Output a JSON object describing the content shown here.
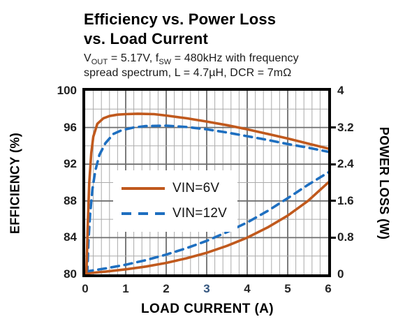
{
  "title": {
    "line1": "Efficiency vs. Power Loss",
    "line2": "vs. Load Current"
  },
  "subtitle": {
    "segments": [
      {
        "t": "V"
      },
      {
        "sub": "OUT"
      },
      {
        "t": " = 5.17V, f"
      },
      {
        "sub": "SW"
      },
      {
        "t": " = 480kHz with frequency"
      },
      {
        "br": true
      },
      {
        "t": "spread spectrum, L = 4.7µH, DCR = 7mΩ"
      }
    ]
  },
  "legend": {
    "items": [
      {
        "label": "VIN=6V",
        "style": "solid",
        "color": "#C0591D"
      },
      {
        "label": "VIN=12V",
        "style": "dashed",
        "color": "#1E6FC0"
      }
    ]
  },
  "colors": {
    "series_6v": "#C0591D",
    "series_12v": "#1E6FC0",
    "grid_minor": "#ABABAB",
    "grid_major": "#6E6E6E",
    "frame": "#000000",
    "tick_text": "#1F1F1F",
    "xtick_3_blue": "#33557E"
  },
  "chart_data": {
    "type": "line",
    "title": "Efficiency vs. Power Loss vs. Load Current",
    "xlabel": "LOAD CURRENT  (A)",
    "ylabel_left": "EFFICIENCY  (%)",
    "ylabel_right": "POWER LOSS (W)",
    "xlim": [
      0,
      6
    ],
    "ylim_left": [
      80,
      100
    ],
    "ylim_right": [
      0,
      4
    ],
    "x_major_step": 1,
    "x_minor_step": 0.2,
    "y_left_major_step": 4,
    "y_left_minor_step": 2,
    "y_right_major_step": 0.8,
    "y_right_minor_step": 0.4,
    "grid": "both",
    "legend_position": "center-left",
    "x_ticks": [
      "0",
      "1",
      "2",
      "3",
      "4",
      "5",
      "6"
    ],
    "x_tick_colors": [
      "#262626",
      "#262626",
      "#262626",
      "#33557E",
      "#262626",
      "#262626",
      "#262626"
    ],
    "y_left_ticks": [
      "100",
      "96",
      "92",
      "88",
      "84",
      "80"
    ],
    "y_right_ticks": [
      "4",
      "3.2",
      "2.4",
      "1.6",
      "0.8",
      "0"
    ],
    "series": [
      {
        "name": "Efficiency VIN=6V",
        "axis": "left",
        "style": "solid",
        "color": "#C0591D",
        "points": [
          [
            0.03,
            80
          ],
          [
            0.06,
            85
          ],
          [
            0.1,
            90
          ],
          [
            0.15,
            93.2
          ],
          [
            0.2,
            95
          ],
          [
            0.3,
            96.4
          ],
          [
            0.45,
            97
          ],
          [
            0.6,
            97.25
          ],
          [
            0.8,
            97.4
          ],
          [
            1.0,
            97.45
          ],
          [
            1.3,
            97.5
          ],
          [
            1.7,
            97.45
          ],
          [
            2.0,
            97.3
          ],
          [
            2.5,
            97.0
          ],
          [
            3.0,
            96.65
          ],
          [
            3.5,
            96.25
          ],
          [
            4.0,
            95.8
          ],
          [
            4.5,
            95.3
          ],
          [
            5.0,
            94.8
          ],
          [
            5.5,
            94.25
          ],
          [
            6.0,
            93.7
          ]
        ]
      },
      {
        "name": "Efficiency VIN=12V",
        "axis": "left",
        "style": "dashed",
        "color": "#1E6FC0",
        "points": [
          [
            0.05,
            80
          ],
          [
            0.08,
            83.5
          ],
          [
            0.12,
            86.5
          ],
          [
            0.18,
            89.3
          ],
          [
            0.25,
            91.3
          ],
          [
            0.35,
            93
          ],
          [
            0.5,
            94.3
          ],
          [
            0.7,
            95.3
          ],
          [
            0.9,
            95.7
          ],
          [
            1.2,
            96
          ],
          [
            1.5,
            96.15
          ],
          [
            2.0,
            96.2
          ],
          [
            2.5,
            96.05
          ],
          [
            3.0,
            95.8
          ],
          [
            3.5,
            95.45
          ],
          [
            4.0,
            95.05
          ],
          [
            4.5,
            94.65
          ],
          [
            5.0,
            94.2
          ],
          [
            5.5,
            93.8
          ],
          [
            6.0,
            93.35
          ]
        ]
      },
      {
        "name": "Power Loss VIN=6V",
        "axis": "right",
        "style": "solid",
        "color": "#C0591D",
        "points": [
          [
            0,
            0.02
          ],
          [
            0.5,
            0.06
          ],
          [
            1,
            0.11
          ],
          [
            1.5,
            0.17
          ],
          [
            2,
            0.25
          ],
          [
            2.5,
            0.35
          ],
          [
            3,
            0.47
          ],
          [
            3.5,
            0.62
          ],
          [
            4,
            0.8
          ],
          [
            4.5,
            1.02
          ],
          [
            5,
            1.28
          ],
          [
            5.5,
            1.6
          ],
          [
            6,
            2.0
          ]
        ]
      },
      {
        "name": "Power Loss VIN=12V",
        "axis": "right",
        "style": "dashed",
        "color": "#1E6FC0",
        "points": [
          [
            0,
            0.06
          ],
          [
            0.5,
            0.13
          ],
          [
            1,
            0.21
          ],
          [
            1.5,
            0.31
          ],
          [
            2,
            0.43
          ],
          [
            2.5,
            0.57
          ],
          [
            3,
            0.73
          ],
          [
            3.5,
            0.92
          ],
          [
            4,
            1.13
          ],
          [
            4.5,
            1.38
          ],
          [
            5,
            1.66
          ],
          [
            5.5,
            1.95
          ],
          [
            6,
            2.22
          ]
        ]
      }
    ]
  }
}
